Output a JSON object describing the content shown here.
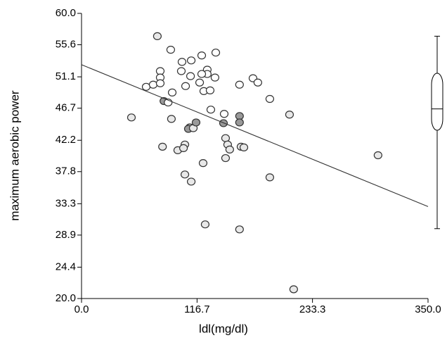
{
  "chart_data": {
    "type": "scatter",
    "x_label": "ldl(mg/dl)",
    "y_label": "maximum aerobic power",
    "xlim": [
      0,
      350
    ],
    "ylim": [
      20,
      60
    ],
    "xticks": [
      {
        "value": 0,
        "label": "0.0"
      },
      116.7,
      233.3,
      {
        "value": 350,
        "label": "350.0"
      }
    ],
    "yticks": [
      {
        "value": 20,
        "label": "20.0"
      },
      24.4,
      28.9,
      33.3,
      37.8,
      42.2,
      46.7,
      51.1,
      55.6,
      {
        "value": 60,
        "label": "60.0"
      }
    ],
    "x": [
      50.4,
      76.6,
      65.3,
      72.4,
      79.5,
      79.5,
      79.5,
      90.1,
      91.6,
      83.2,
      87.5,
      81.8,
      90.8,
      97.2,
      101.5,
      100.8,
      105.1,
      110.1,
      110.8,
      109.3,
      107.9,
      112.9,
      115.7,
      104.4,
      103.0,
      104.4,
      110.8,
      121.4,
      127.0,
      127.0,
      121.4,
      119.3,
      123.5,
      129.9,
      122.8,
      130.6,
      135.6,
      134.8,
      124.9,
      144.1,
      143.4,
      145.5,
      145.5,
      147.6,
      149.7,
      159.6,
      159.6,
      159.6,
      161.1,
      164.0,
      159.6,
      173.2,
      178.1,
      190.2,
      190.2,
      210.1,
      214.3,
      299.5
    ],
    "values": [
      45.4,
      56.8,
      49.7,
      50.0,
      51.9,
      51.0,
      50.2,
      54.9,
      48.9,
      47.7,
      47.5,
      41.3,
      45.2,
      40.8,
      53.2,
      51.9,
      49.8,
      51.2,
      53.4,
      44.0,
      43.8,
      43.9,
      44.7,
      41.6,
      41.1,
      37.4,
      36.4,
      54.1,
      52.1,
      51.5,
      51.5,
      50.3,
      49.1,
      49.2,
      39.0,
      46.5,
      54.5,
      51.0,
      30.4,
      45.9,
      44.6,
      42.5,
      39.7,
      41.6,
      40.9,
      45.6,
      44.7,
      50.0,
      41.3,
      41.2,
      29.7,
      50.9,
      50.3,
      48.0,
      37.0,
      45.8,
      21.3,
      40.1
    ],
    "marker_fills": [
      "#e8e8e8",
      "#e8e8e8",
      "#fff",
      "#fff",
      "#fff",
      "#fff",
      "#fff",
      "#fff",
      "#fff",
      "#999",
      "#fff",
      "#e8e8e8",
      "#e8e8e8",
      "#e8e8e8",
      "#fff",
      "#fff",
      "#fff",
      "#fff",
      "#fff",
      "#e8e8e8",
      "#999",
      "#e8e8e8",
      "#999",
      "#e8e8e8",
      "#e8e8e8",
      "#e8e8e8",
      "#e8e8e8",
      "#fff",
      "#fff",
      "#fff",
      "#fff",
      "#fff",
      "#fff",
      "#fff",
      "#e8e8e8",
      "#fff",
      "#fff",
      "#fff",
      "#e8e8e8",
      "#fff",
      "#999",
      "#e8e8e8",
      "#e8e8e8",
      "#e8e8e8",
      "#e8e8e8",
      "#999",
      "#999",
      "#fff",
      "#e8e8e8",
      "#e8e8e8",
      "#e8e8e8",
      "#fff",
      "#fff",
      "#fff",
      "#e8e8e8",
      "#e8e8e8",
      "#e8e8e8",
      "#e8e8e8"
    ],
    "trend": {
      "x": [
        0,
        350
      ],
      "values": [
        52.8,
        32.9
      ]
    },
    "box": {
      "whisker_low": 29.8,
      "q1": 43.6,
      "median": 46.6,
      "q3": 51.6,
      "whisker_high": 56.8
    }
  }
}
